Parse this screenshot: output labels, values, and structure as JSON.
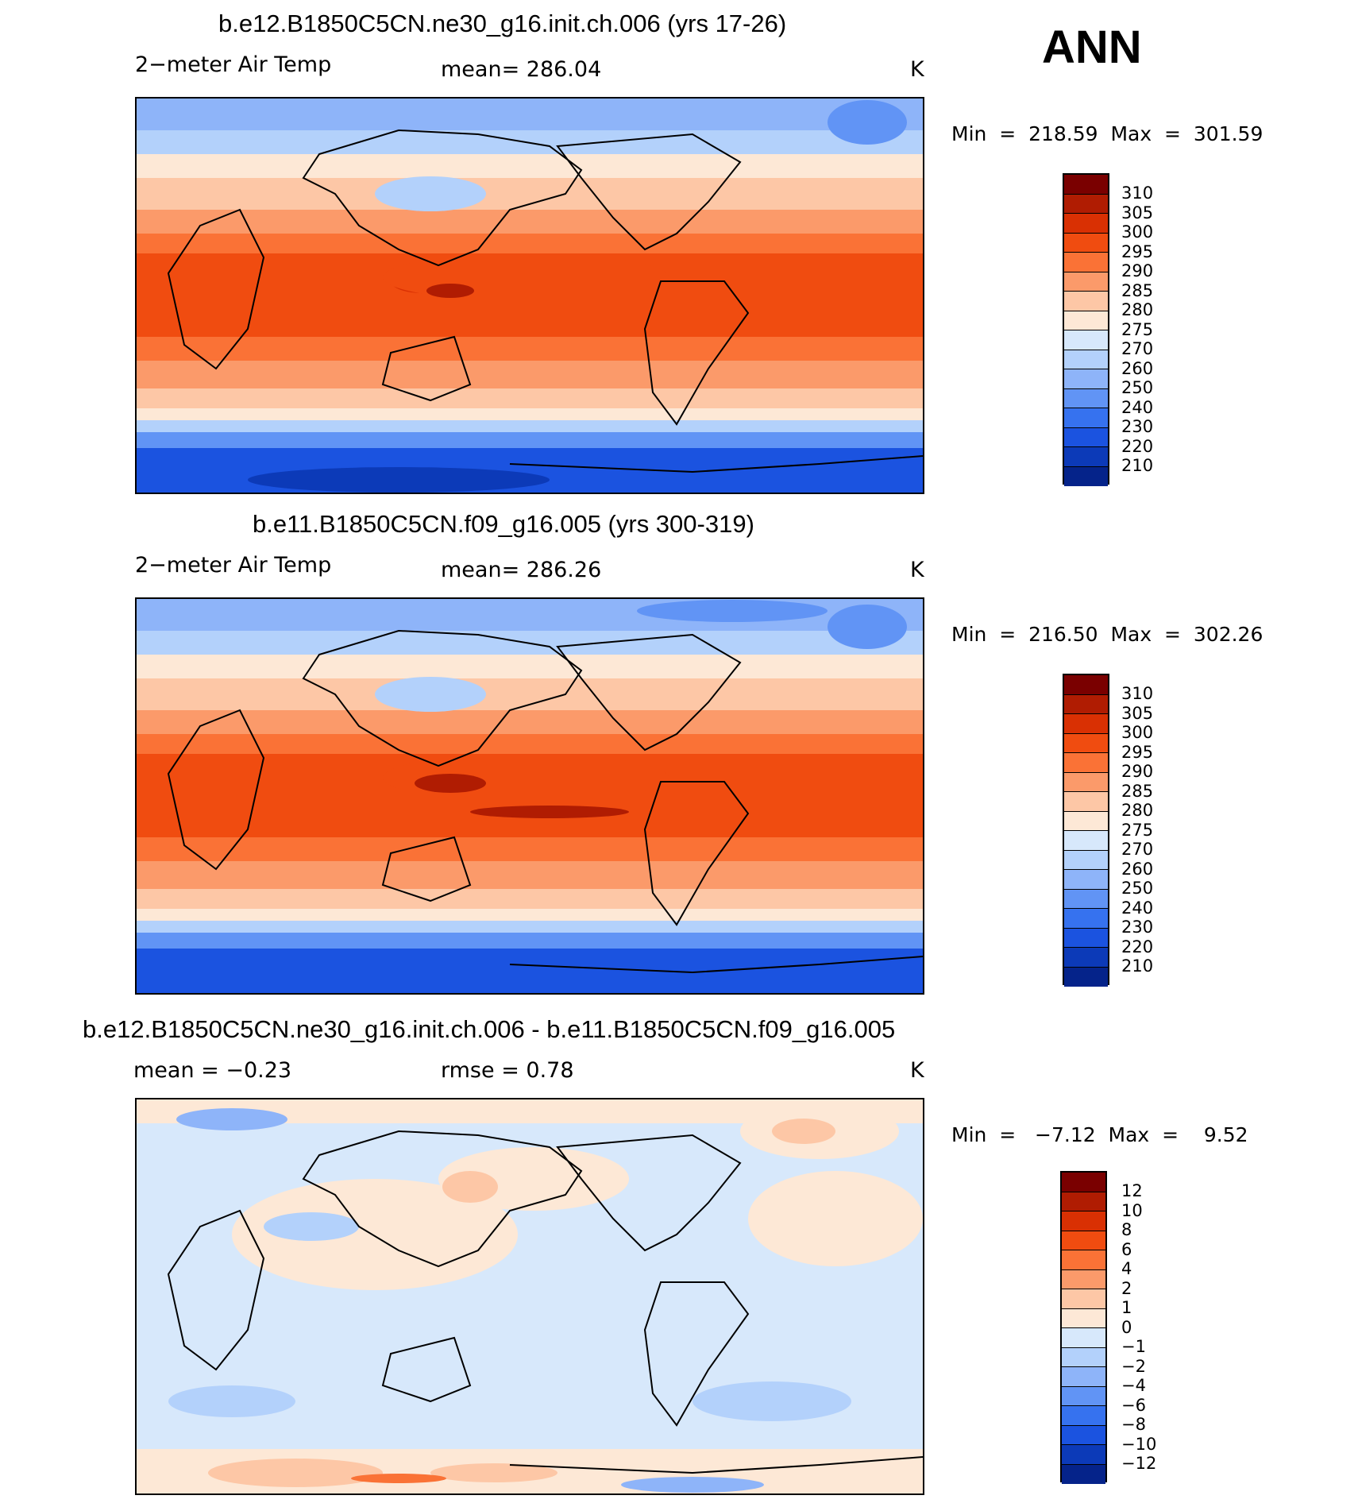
{
  "season": "ANN",
  "panels": [
    {
      "title": "b.e12.B1850C5CN.ne30_g16.init.ch.006 (yrs 17-26)",
      "variable": "2−meter Air Temp",
      "stat1": "mean=  286.04",
      "stat2": "",
      "units": "K",
      "minmax": "Min  =  218.59  Max  =  301.59",
      "colorbar": {
        "labels": [
          "310",
          "305",
          "300",
          "295",
          "290",
          "285",
          "280",
          "275",
          "270",
          "260",
          "250",
          "240",
          "230",
          "220",
          "210"
        ],
        "colors": [
          "#7a0000",
          "#b01c02",
          "#d93003",
          "#f04c10",
          "#fa7236",
          "#fb9a6a",
          "#fdc7a6",
          "#fde8d6",
          "#d7e8fb",
          "#b3d1fb",
          "#8eb4f9",
          "#6194f5",
          "#3672ef",
          "#1b53e0",
          "#0c3ab8",
          "#05238a"
        ]
      }
    },
    {
      "title": "b.e11.B1850C5CN.f09_g16.005 (yrs 300-319)",
      "variable": "2−meter Air Temp",
      "stat1": "mean=  286.26",
      "stat2": "",
      "units": "K",
      "minmax": "Min  =  216.50  Max  =  302.26",
      "colorbar": {
        "labels": [
          "310",
          "305",
          "300",
          "295",
          "290",
          "285",
          "280",
          "275",
          "270",
          "260",
          "250",
          "240",
          "230",
          "220",
          "210"
        ],
        "colors": [
          "#7a0000",
          "#b01c02",
          "#d93003",
          "#f04c10",
          "#fa7236",
          "#fb9a6a",
          "#fdc7a6",
          "#fde8d6",
          "#d7e8fb",
          "#b3d1fb",
          "#8eb4f9",
          "#6194f5",
          "#3672ef",
          "#1b53e0",
          "#0c3ab8",
          "#05238a"
        ]
      }
    },
    {
      "title": "b.e12.B1850C5CN.ne30_g16.init.ch.006 - b.e11.B1850C5CN.f09_g16.005",
      "variable": "",
      "stat1": "mean =   −0.23",
      "stat2": "rmse =    0.78",
      "units": "K",
      "minmax": "Min  =   −7.12  Max  =    9.52",
      "colorbar": {
        "labels": [
          "12",
          "10",
          "8",
          "6",
          "4",
          "2",
          "1",
          "0",
          "−1",
          "−2",
          "−4",
          "−6",
          "−8",
          "−10",
          "−12"
        ],
        "colors": [
          "#7a0000",
          "#b01c02",
          "#d93003",
          "#f04c10",
          "#fa7236",
          "#fb9a6a",
          "#fdc7a6",
          "#fde8d6",
          "#d7e8fb",
          "#b3d1fb",
          "#8eb4f9",
          "#6194f5",
          "#3672ef",
          "#1b53e0",
          "#0c3ab8",
          "#05238a"
        ]
      }
    }
  ]
}
